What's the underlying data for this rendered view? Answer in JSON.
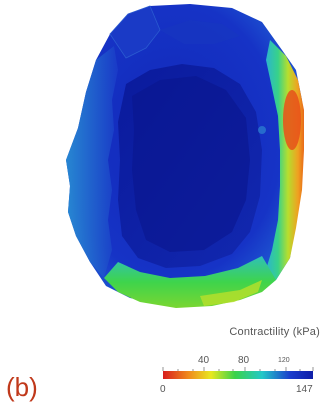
{
  "panel_label": "(b)",
  "colorbar": {
    "title": "Contractility (kPa)",
    "top_ticks": [
      "40",
      "80",
      "120"
    ],
    "bottom_ticks": [
      "0",
      "147"
    ],
    "min": 0,
    "max": 147,
    "colormap": [
      "#d81e1e",
      "#f08a1c",
      "#e8e820",
      "#3ad24a",
      "#22c8c8",
      "#1a3ccc",
      "#0f1ea8"
    ]
  },
  "colors": {
    "high": "#e04a1a",
    "mid": "#3ad24a",
    "low": "#1a30c8",
    "background": "#ffffff"
  }
}
